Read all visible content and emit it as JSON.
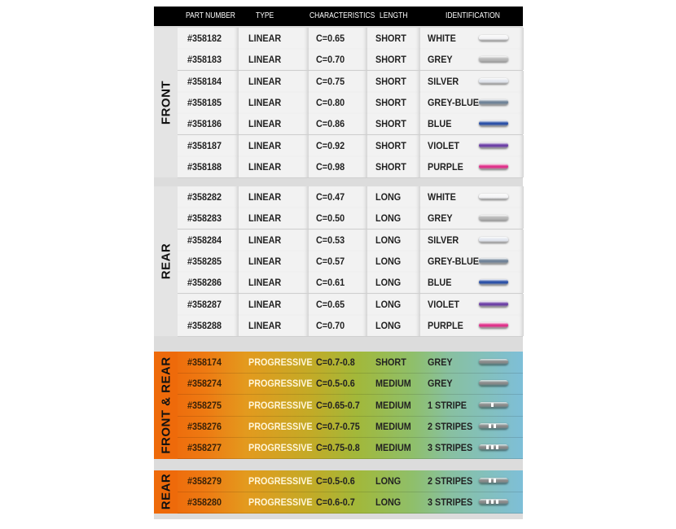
{
  "header": [
    "PART NUMBER",
    "TYPE",
    "CHARACTERISTICS",
    "LENGTH",
    "IDENTIFICATION"
  ],
  "sections": [
    {
      "label": "FRONT",
      "style": "linear",
      "rows": [
        {
          "part": "#358182",
          "type": "LINEAR",
          "char": "C=0.65",
          "length": "SHORT",
          "id": "WHITE",
          "color": "#f4f4f6"
        },
        {
          "part": "#358183",
          "type": "LINEAR",
          "char": "C=0.70",
          "length": "SHORT",
          "id": "GREY",
          "color": "#b8b8b8"
        },
        {
          "part": "#358184",
          "type": "LINEAR",
          "char": "C=0.75",
          "length": "SHORT",
          "id": "SILVER",
          "color": "#e2e6ee"
        },
        {
          "part": "#358185",
          "type": "LINEAR",
          "char": "C=0.80",
          "length": "SHORT",
          "id": "GREY-BLUE",
          "color": "#6f8398"
        },
        {
          "part": "#358186",
          "type": "LINEAR",
          "char": "C=0.86",
          "length": "SHORT",
          "id": "BLUE",
          "color": "#2a50a8"
        },
        {
          "part": "#358187",
          "type": "LINEAR",
          "char": "C=0.92",
          "length": "SHORT",
          "id": "VIOLET",
          "color": "#6c3fa6"
        },
        {
          "part": "#358188",
          "type": "LINEAR",
          "char": "C=0.98",
          "length": "SHORT",
          "id": "PURPLE",
          "color": "#e0308a"
        }
      ]
    },
    {
      "label": "REAR",
      "style": "linear",
      "rows": [
        {
          "part": "#358282",
          "type": "LINEAR",
          "char": "C=0.47",
          "length": "LONG",
          "id": "WHITE",
          "color": "#f4f4f6"
        },
        {
          "part": "#358283",
          "type": "LINEAR",
          "char": "C=0.50",
          "length": "LONG",
          "id": "GREY",
          "color": "#b8b8b8"
        },
        {
          "part": "#358284",
          "type": "LINEAR",
          "char": "C=0.53",
          "length": "LONG",
          "id": "SILVER",
          "color": "#e2e6ee"
        },
        {
          "part": "#358285",
          "type": "LINEAR",
          "char": "C=0.57",
          "length": "LONG",
          "id": "GREY-BLUE",
          "color": "#6f8398"
        },
        {
          "part": "#358286",
          "type": "LINEAR",
          "char": "C=0.61",
          "length": "LONG",
          "id": "BLUE",
          "color": "#2a50a8"
        },
        {
          "part": "#358287",
          "type": "LINEAR",
          "char": "C=0.65",
          "length": "LONG",
          "id": "VIOLET",
          "color": "#6c3fa6"
        },
        {
          "part": "#358288",
          "type": "LINEAR",
          "char": "C=0.70",
          "length": "LONG",
          "id": "PURPLE",
          "color": "#e0308a"
        }
      ]
    },
    {
      "label": "FRONT & REAR",
      "style": "progressive",
      "rows": [
        {
          "part": "#358174",
          "type": "PROGRESSIVE",
          "char": "C=0.7-0.8",
          "length": "SHORT",
          "id": "GREY",
          "color": "#8a8a8a",
          "stripes": 0
        },
        {
          "part": "#358274",
          "type": "PROGRESSIVE",
          "char": "C=0.5-0.6",
          "length": "MEDIUM",
          "id": "GREY",
          "color": "#8a8a8a",
          "stripes": 0
        },
        {
          "part": "#358275",
          "type": "PROGRESSIVE",
          "char": "C=0.65-0.7",
          "length": "MEDIUM",
          "id": "1 STRIPE",
          "color": "#8a8a8a",
          "stripes": 1
        },
        {
          "part": "#358276",
          "type": "PROGRESSIVE",
          "char": "C=0.7-0.75",
          "length": "MEDIUM",
          "id": "2 STRIPES",
          "color": "#8a8a8a",
          "stripes": 2
        },
        {
          "part": "#358277",
          "type": "PROGRESSIVE",
          "char": "C=0.75-0.8",
          "length": "MEDIUM",
          "id": "3 STRIPES",
          "color": "#8a8a8a",
          "stripes": 3
        }
      ]
    },
    {
      "label": "REAR",
      "style": "progressive",
      "rows": [
        {
          "part": "#358279",
          "type": "PROGRESSIVE",
          "char": "C=0.5-0.6",
          "length": "LONG",
          "id": "2 STRIPES",
          "color": "#8a8a8a",
          "stripes": 2
        },
        {
          "part": "#358280",
          "type": "PROGRESSIVE",
          "char": "C=0.6-0.7",
          "length": "LONG",
          "id": "3 STRIPES",
          "color": "#8a8a8a",
          "stripes": 3
        }
      ]
    }
  ]
}
